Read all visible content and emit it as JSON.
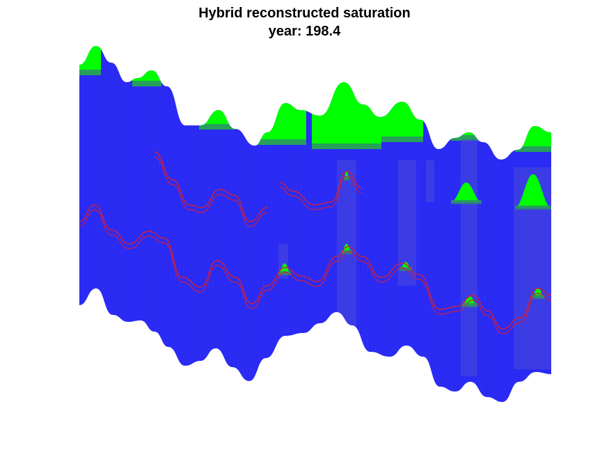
{
  "chart_data": {
    "type": "heatmap",
    "title": "Hybrid reconstructed saturation",
    "subtitle": "year: 198.4",
    "xlabel": "",
    "ylabel": "",
    "axes_visible": false,
    "legend": "none",
    "colormap": {
      "water": "#2a2af5",
      "gas": "#00ff00",
      "transition": "#2d8f6a",
      "well_trace": "#d0203a",
      "outline": "#111111"
    },
    "top_surface": [
      0.52,
      0.44,
      0.4,
      0.38,
      0.4,
      0.46,
      0.53
    ],
    "saturation_zones": [
      {
        "name": "gas cap crest 1",
        "value": 1.0
      },
      {
        "name": "gas cap crest 2",
        "value": 1.0
      },
      {
        "name": "gas cap crest 3",
        "value": 1.0
      },
      {
        "name": "gas cap crest 4",
        "value": 1.0
      },
      {
        "name": "gas cap crest 5",
        "value": 1.0
      },
      {
        "name": "gas cap crest 6",
        "value": 1.0
      },
      {
        "name": "gas cap crest 7",
        "value": 1.0
      },
      {
        "name": "gas cap crest 8",
        "value": 1.0
      }
    ],
    "gas_pockets": [
      {
        "x": 0.43,
        "layer": 2,
        "value": 0.9
      },
      {
        "x": 0.56,
        "layer": 1,
        "value": 0.9
      },
      {
        "x": 0.56,
        "layer": 2,
        "value": 0.9
      },
      {
        "x": 0.69,
        "layer": 2,
        "value": 0.9
      },
      {
        "x": 0.82,
        "layer": 1,
        "value": 1.0
      },
      {
        "x": 0.82,
        "layer": 2,
        "value": 0.9
      },
      {
        "x": 0.96,
        "layer": 1,
        "value": 1.0
      },
      {
        "x": 0.96,
        "layer": 2,
        "value": 0.9
      }
    ],
    "wells": [
      {
        "name": "trace-upper-left"
      },
      {
        "name": "trace-upper-right"
      },
      {
        "name": "trace-lower"
      }
    ]
  }
}
